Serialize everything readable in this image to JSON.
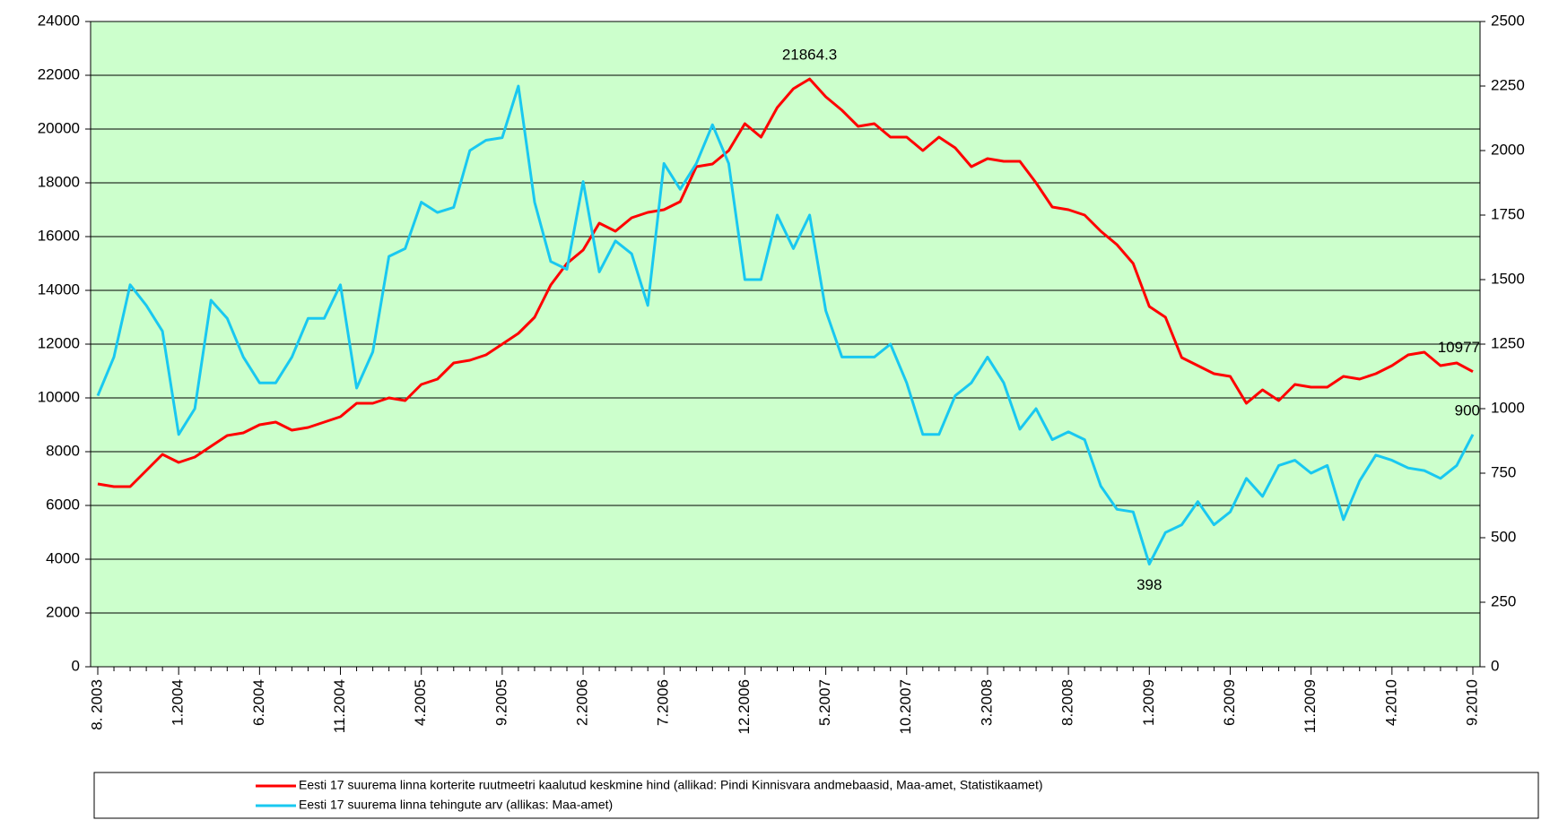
{
  "chart_data": {
    "type": "line",
    "categories": [
      "8. 2003",
      null,
      null,
      null,
      null,
      "1.2004",
      null,
      null,
      null,
      null,
      "6.2004",
      null,
      null,
      null,
      null,
      "11.2004",
      null,
      null,
      null,
      null,
      "4.2005",
      null,
      null,
      null,
      null,
      "9.2005",
      null,
      null,
      null,
      null,
      "2.2006",
      null,
      null,
      null,
      null,
      "7.2006",
      null,
      null,
      null,
      null,
      "12.2006",
      null,
      null,
      null,
      null,
      "5.2007",
      null,
      null,
      null,
      null,
      "10.2007",
      null,
      null,
      null,
      null,
      "3.2008",
      null,
      null,
      null,
      null,
      "8.2008",
      null,
      null,
      null,
      null,
      "1.2009",
      null,
      null,
      null,
      null,
      "6.2009",
      null,
      null,
      null,
      null,
      "11.2009",
      null,
      null,
      null,
      null,
      "4.2010",
      null,
      null,
      null,
      null,
      "9.2010"
    ],
    "series": [
      {
        "name": "Eesti 17 suurema linna korterite ruutmeetri kaalutud keskmine hind (allikad: Pindi Kinnisvara andmebaasid, Maa-amet, Statistikaamet)",
        "color": "#ff0000",
        "values": [
          6800,
          6700,
          6700,
          7300,
          7900,
          7600,
          7800,
          8200,
          8600,
          8700,
          9000,
          9100,
          8800,
          8900,
          9100,
          9300,
          9800,
          9800,
          10000,
          9900,
          10500,
          10700,
          11300,
          11400,
          11600,
          12000,
          12400,
          13000,
          14200,
          15000,
          15500,
          16500,
          16200,
          16700,
          16900,
          17000,
          17300,
          18600,
          18700,
          19200,
          20200,
          19700,
          20800,
          21500,
          21864.3,
          21200,
          20700,
          20100,
          20200,
          19700,
          19700,
          19200,
          19700,
          19300,
          18600,
          18900,
          18800,
          18800,
          18000,
          17100,
          17000,
          16800,
          16200,
          15700,
          15000,
          13400,
          13000,
          11500,
          11200,
          10900,
          10800,
          9800,
          10300,
          9900,
          10500,
          10400,
          10400,
          10800,
          10700,
          10900,
          11200,
          11600,
          11700,
          11200,
          11300,
          10977
        ],
        "value_labels": [
          null,
          null,
          null,
          null,
          null,
          null,
          null,
          null,
          null,
          null,
          null,
          null,
          null,
          null,
          null,
          null,
          null,
          null,
          null,
          null,
          null,
          null,
          null,
          null,
          null,
          null,
          null,
          null,
          null,
          null,
          null,
          null,
          null,
          null,
          null,
          null,
          null,
          null,
          null,
          null,
          null,
          null,
          null,
          null,
          "21864.3",
          null,
          null,
          null,
          null,
          null,
          null,
          null,
          null,
          null,
          null,
          null,
          null,
          null,
          null,
          null,
          null,
          null,
          null,
          null,
          null,
          null,
          null,
          null,
          null,
          null,
          null,
          null,
          null,
          null,
          null,
          null,
          null,
          null,
          null,
          null,
          null,
          null,
          null,
          null,
          null,
          "10977"
        ]
      },
      {
        "name": "Eesti 17 suurema linna tehingute arv (allikas: Maa-amet)",
        "color": "#19c8f0",
        "axis": "y2",
        "values": [
          1050,
          1200,
          1480,
          1400,
          1300,
          900,
          1000,
          1420,
          1350,
          1200,
          1100,
          1100,
          1200,
          1350,
          1350,
          1480,
          1080,
          1220,
          1590,
          1620,
          1800,
          1760,
          1780,
          2000,
          2040,
          2050,
          2250,
          1800,
          1570,
          1540,
          1880,
          1530,
          1650,
          1600,
          1400,
          1950,
          1850,
          1950,
          2100,
          1950,
          1500,
          1500,
          1750,
          1620,
          1750,
          1380,
          1200,
          1200,
          1200,
          1250,
          1100,
          900,
          900,
          1050,
          1100,
          1200,
          1100,
          920,
          1000,
          880,
          910,
          880,
          700,
          610,
          600,
          398,
          520,
          550,
          640,
          550,
          600,
          730,
          660,
          780,
          800,
          750,
          780,
          570,
          720,
          820,
          800,
          770,
          760,
          730,
          780,
          900
        ],
        "value_labels": [
          null,
          null,
          null,
          null,
          null,
          null,
          null,
          null,
          null,
          null,
          null,
          null,
          null,
          null,
          null,
          null,
          null,
          null,
          null,
          null,
          null,
          null,
          null,
          null,
          null,
          null,
          null,
          null,
          null,
          null,
          null,
          null,
          null,
          null,
          null,
          null,
          null,
          null,
          null,
          null,
          null,
          null,
          null,
          null,
          null,
          null,
          null,
          null,
          null,
          null,
          null,
          null,
          null,
          null,
          null,
          null,
          null,
          null,
          null,
          null,
          null,
          null,
          null,
          null,
          null,
          "398",
          null,
          null,
          null,
          null,
          null,
          null,
          null,
          null,
          null,
          null,
          null,
          null,
          null,
          null,
          null,
          null,
          null,
          null,
          null,
          "900"
        ]
      }
    ],
    "ylim": [
      0,
      24000
    ],
    "yticks": [
      0,
      2000,
      4000,
      6000,
      8000,
      10000,
      12000,
      14000,
      16000,
      18000,
      20000,
      22000,
      24000
    ],
    "y2lim": [
      0,
      2500
    ],
    "y2ticks": [
      0,
      250,
      500,
      750,
      1000,
      1250,
      1500,
      1750,
      2000,
      2250,
      2500
    ],
    "grid": true,
    "background": "#ccffcc",
    "legend": "bottom"
  }
}
